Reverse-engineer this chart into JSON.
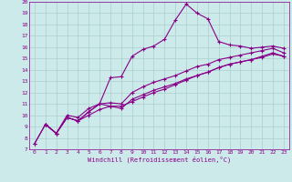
{
  "xlabel": "Windchill (Refroidissement éolien,°C)",
  "xlim": [
    -0.5,
    23.5
  ],
  "ylim": [
    7,
    20
  ],
  "xticks": [
    0,
    1,
    2,
    3,
    4,
    5,
    6,
    7,
    8,
    9,
    10,
    11,
    12,
    13,
    14,
    15,
    16,
    17,
    18,
    19,
    20,
    21,
    22,
    23
  ],
  "yticks": [
    7,
    8,
    9,
    10,
    11,
    12,
    13,
    14,
    15,
    16,
    17,
    18,
    19,
    20
  ],
  "bg_color": "#cdeaea",
  "grid_color": "#aacece",
  "line_color": "#880088",
  "line1_x": [
    0,
    1,
    2,
    3,
    4,
    5,
    6,
    7,
    8,
    9,
    10,
    11,
    12,
    13,
    14,
    15,
    16,
    17,
    18,
    19,
    20,
    21,
    22,
    23
  ],
  "line1_y": [
    7.5,
    9.2,
    8.4,
    10.0,
    9.8,
    10.6,
    11.0,
    13.3,
    13.4,
    15.2,
    15.8,
    16.1,
    16.7,
    18.4,
    19.8,
    19.0,
    18.5,
    16.5,
    16.2,
    16.1,
    15.9,
    16.0,
    16.1,
    15.9
  ],
  "line2_x": [
    1,
    2,
    3,
    4,
    5,
    6,
    7,
    8,
    9,
    10,
    11,
    12,
    13,
    14,
    15,
    16,
    17,
    18,
    19,
    20,
    21,
    22,
    23
  ],
  "line2_y": [
    9.2,
    8.4,
    9.8,
    9.5,
    10.3,
    11.0,
    11.1,
    11.0,
    12.0,
    12.5,
    12.9,
    13.2,
    13.5,
    13.9,
    14.3,
    14.5,
    14.9,
    15.1,
    15.3,
    15.5,
    15.7,
    15.9,
    15.5
  ],
  "line3_x": [
    1,
    2,
    3,
    4,
    5,
    6,
    7,
    8,
    9,
    10,
    11,
    12,
    13,
    14,
    15,
    16,
    17,
    18,
    19,
    20,
    21,
    22,
    23
  ],
  "line3_y": [
    9.2,
    8.4,
    9.8,
    9.5,
    10.3,
    11.0,
    10.8,
    10.6,
    11.4,
    11.8,
    12.2,
    12.5,
    12.8,
    13.2,
    13.5,
    13.8,
    14.2,
    14.5,
    14.7,
    14.9,
    15.2,
    15.5,
    15.2
  ],
  "line4_x": [
    0,
    1,
    2,
    3,
    4,
    5,
    6,
    7,
    8,
    9,
    10,
    11,
    12,
    13,
    14,
    15,
    16,
    17,
    18,
    19,
    20,
    21,
    22,
    23
  ],
  "line4_y": [
    7.5,
    9.2,
    8.4,
    9.8,
    9.5,
    10.0,
    10.5,
    10.8,
    10.8,
    11.2,
    11.6,
    12.0,
    12.3,
    12.7,
    13.1,
    13.5,
    13.8,
    14.2,
    14.5,
    14.7,
    14.9,
    15.1,
    15.4,
    15.2
  ]
}
